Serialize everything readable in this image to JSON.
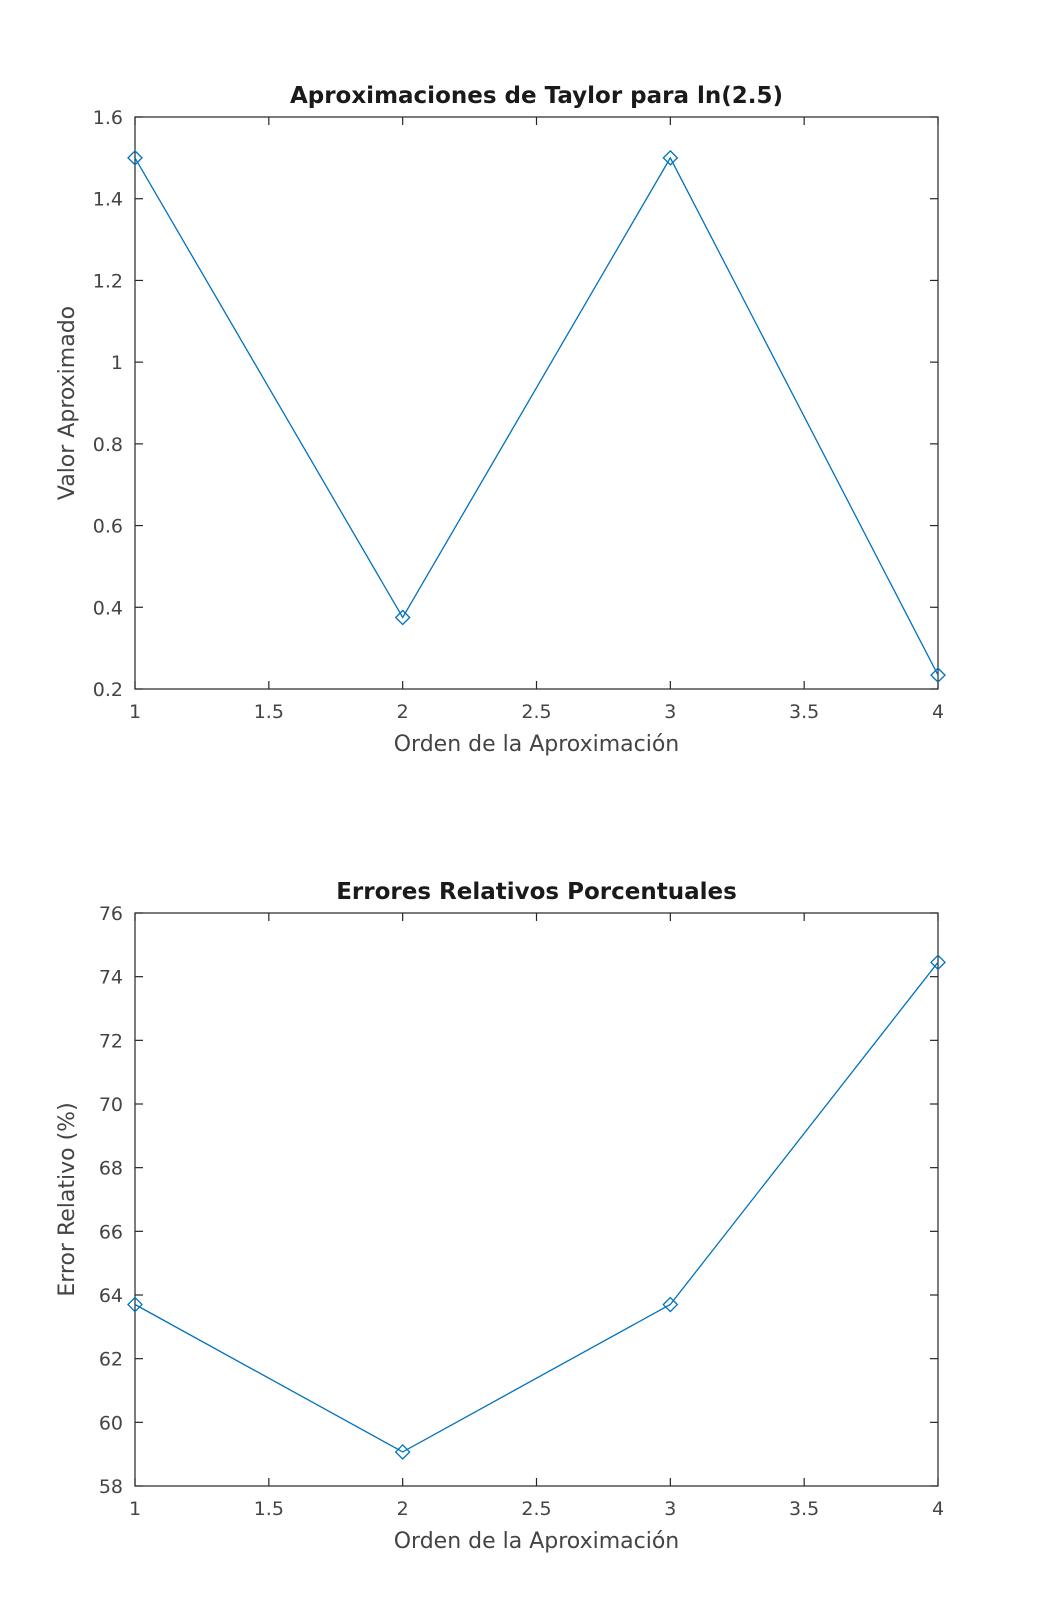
{
  "chart_data": [
    {
      "type": "line",
      "title": "Aproximaciones de Taylor para ln(2.5)",
      "xlabel": "Orden de la Aproximación",
      "ylabel": "Valor Aproximado",
      "xlim": [
        1,
        4
      ],
      "ylim": [
        0.2,
        1.6
      ],
      "xticks": [
        1,
        1.5,
        2,
        2.5,
        3,
        3.5,
        4
      ],
      "xtick_labels": [
        "1",
        "1.5",
        "2",
        "2.5",
        "3",
        "3.5",
        "4"
      ],
      "yticks": [
        0.2,
        0.4,
        0.6,
        0.8,
        1,
        1.2,
        1.4,
        1.6
      ],
      "ytick_labels": [
        "0.2",
        "0.4",
        "0.6",
        "0.8",
        "1",
        "1.2",
        "1.4",
        "1.6"
      ],
      "grid": false,
      "marker": "diamond",
      "color": "#0072bd",
      "series": [
        {
          "x": [
            1,
            2,
            3,
            4
          ],
          "values": [
            1.5,
            0.375,
            1.5,
            0.234
          ]
        }
      ]
    },
    {
      "type": "line",
      "title": "Errores Relativos Porcentuales",
      "xlabel": "Orden de la Aproximación",
      "ylabel": "Error Relativo (%)",
      "xlim": [
        1,
        4
      ],
      "ylim": [
        58,
        76
      ],
      "xticks": [
        1,
        1.5,
        2,
        2.5,
        3,
        3.5,
        4
      ],
      "xtick_labels": [
        "1",
        "1.5",
        "2",
        "2.5",
        "3",
        "3.5",
        "4"
      ],
      "yticks": [
        58,
        60,
        62,
        64,
        66,
        68,
        70,
        72,
        74,
        76
      ],
      "ytick_labels": [
        "58",
        "60",
        "62",
        "64",
        "66",
        "68",
        "70",
        "72",
        "74",
        "76"
      ],
      "grid": false,
      "marker": "diamond",
      "color": "#0072bd",
      "series": [
        {
          "x": [
            1,
            2,
            3,
            4
          ],
          "values": [
            63.7,
            59.07,
            63.7,
            74.45
          ]
        }
      ]
    }
  ]
}
